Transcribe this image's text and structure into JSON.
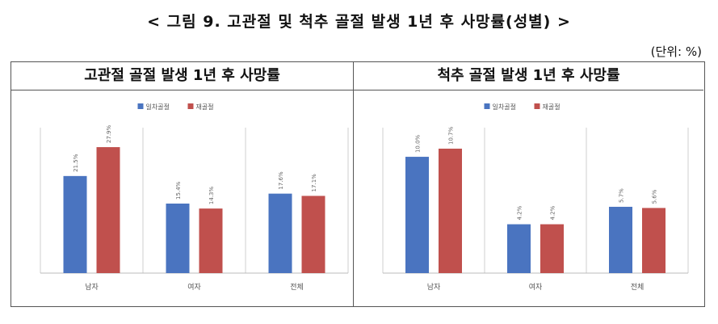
{
  "figure": {
    "title": "< 그림 9. 고관절 및 척추 골절 발생 1년 후 사망률(성별) >",
    "unit": "(단위: %)"
  },
  "colors": {
    "first_fracture": "#4a74c0",
    "refracture": "#c0504d",
    "category_lines": "#cfcfcf"
  },
  "chart_data": [
    {
      "type": "bar",
      "title": "고관절 골절 발생 1년 후 사망률",
      "categories": [
        "남자",
        "여자",
        "전체"
      ],
      "series": [
        {
          "name": "일차골절",
          "values": [
            21.5,
            15.4,
            17.6
          ],
          "labels": [
            "21.5%",
            "15.4%",
            "17.6%"
          ]
        },
        {
          "name": "재골절",
          "values": [
            27.9,
            14.3,
            17.1
          ],
          "labels": [
            "27.9%",
            "14.3%",
            "17.1%"
          ]
        }
      ],
      "ylim": [
        0,
        34
      ],
      "legend": "top-center",
      "grid": false
    },
    {
      "type": "bar",
      "title": "척추 골절 발생 1년 후 사망률",
      "categories": [
        "남자",
        "여자",
        "전체"
      ],
      "series": [
        {
          "name": "일차골절",
          "values": [
            10.0,
            4.2,
            5.7
          ],
          "labels": [
            "10.0%",
            "4.2%",
            "5.7%"
          ]
        },
        {
          "name": "재골절",
          "values": [
            10.7,
            4.2,
            5.6
          ],
          "labels": [
            "10.7%",
            "4.2%",
            "5.6%"
          ]
        }
      ],
      "ylim": [
        0,
        13.2
      ],
      "legend": "top-center",
      "grid": false
    }
  ]
}
